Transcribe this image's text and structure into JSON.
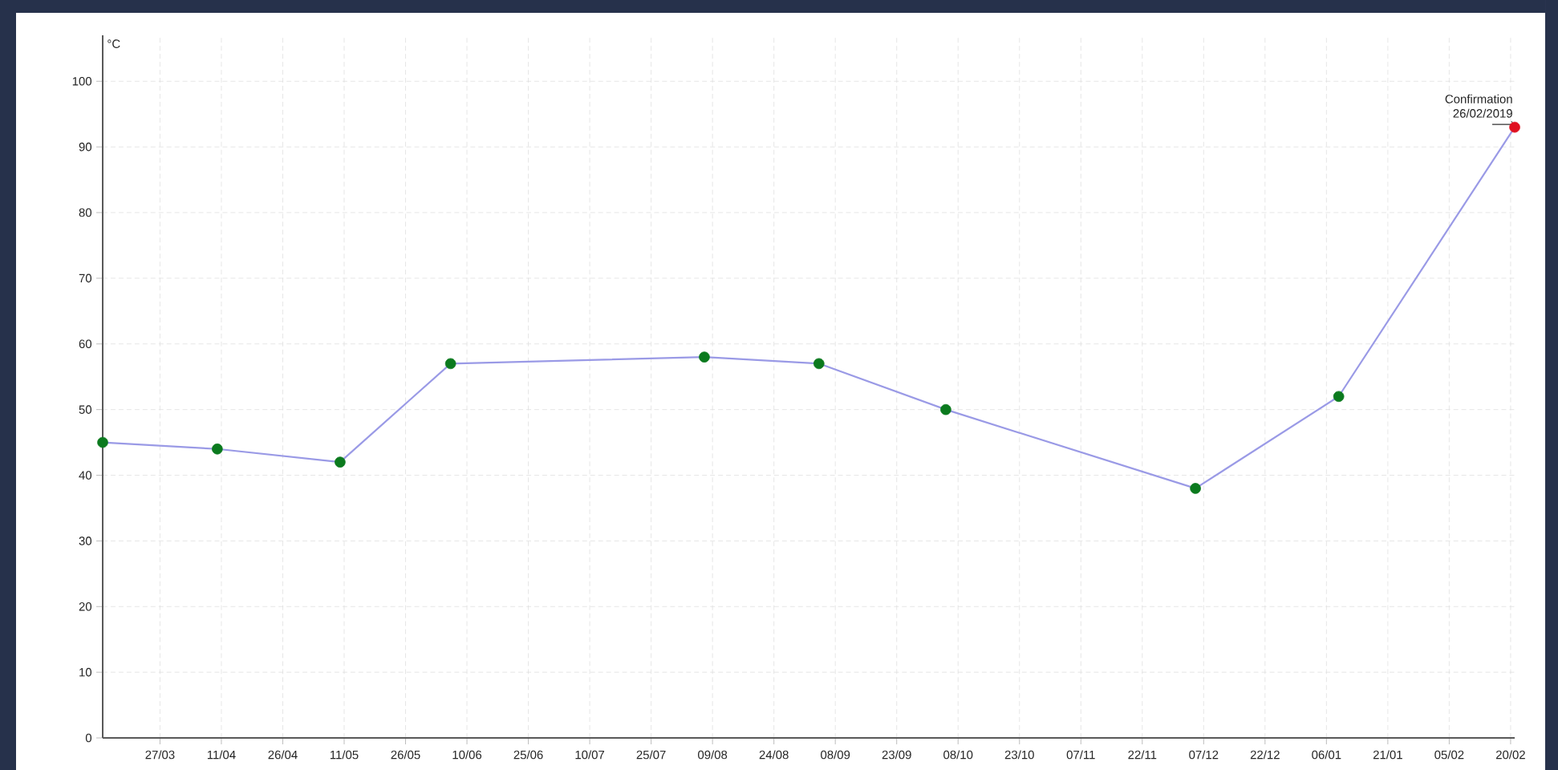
{
  "chart_data": {
    "type": "line",
    "ylabel": "°C",
    "annotations": [
      "Confirmation 26/02/2019"
    ],
    "x": [
      "2018-03-13",
      "2018-04-10",
      "2018-05-10",
      "2018-06-06",
      "2018-08-07",
      "2018-09-04",
      "2018-10-05",
      "2018-12-05",
      "2019-01-09",
      "2019-02-21"
    ],
    "series": [
      {
        "color": "#9a9ae6",
        "values": [
          45,
          44,
          42,
          57,
          58,
          57,
          50,
          38,
          52,
          93
        ],
        "colors": [
          "#0b7a1e",
          "#0b7a1e",
          "#0b7a1e",
          "#0b7a1e",
          "#0b7a1e",
          "#0b7a1e",
          "#0b7a1e",
          "#0b7a1e",
          "#0b7a1e",
          "#e01020"
        ]
      }
    ],
    "marker": "circle",
    "line_style": "solid",
    "grid": true,
    "xlim": [
      "2018-03-13",
      "2019-02-21"
    ],
    "ylim": [
      0,
      107
    ],
    "yticks": [
      0,
      10,
      20,
      30,
      40,
      50,
      60,
      70,
      80,
      90,
      100
    ],
    "xticks": [
      {
        "value": "2018-03-27",
        "label": "27/03"
      },
      {
        "value": "2018-04-11",
        "label": "11/04"
      },
      {
        "value": "2018-04-26",
        "label": "26/04"
      },
      {
        "value": "2018-05-11",
        "label": "11/05"
      },
      {
        "value": "2018-05-26",
        "label": "26/05"
      },
      {
        "value": "2018-06-10",
        "label": "10/06"
      },
      {
        "value": "2018-06-25",
        "label": "25/06"
      },
      {
        "value": "2018-07-10",
        "label": "10/07"
      },
      {
        "value": "2018-07-25",
        "label": "25/07"
      },
      {
        "value": "2018-08-09",
        "label": "09/08"
      },
      {
        "value": "2018-08-24",
        "label": "24/08"
      },
      {
        "value": "2018-09-08",
        "label": "08/09"
      },
      {
        "value": "2018-09-23",
        "label": "23/09"
      },
      {
        "value": "2018-10-08",
        "label": "08/10"
      },
      {
        "value": "2018-10-23",
        "label": "23/10"
      },
      {
        "value": "2018-11-07",
        "label": "07/11"
      },
      {
        "value": "2018-11-22",
        "label": "22/11"
      },
      {
        "value": "2018-12-07",
        "label": "07/12"
      },
      {
        "value": "2018-12-22",
        "label": "22/12"
      },
      {
        "value": "2019-01-06",
        "label": "06/01"
      },
      {
        "value": "2019-01-21",
        "label": "21/01"
      },
      {
        "value": "2019-02-05",
        "label": "05/02"
      },
      {
        "value": "2019-02-20",
        "label": "20/02"
      }
    ]
  }
}
